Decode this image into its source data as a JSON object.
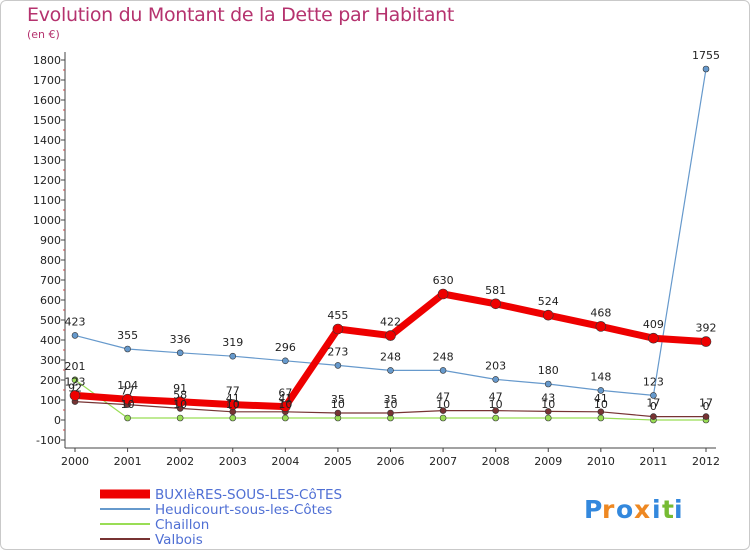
{
  "chart_data": {
    "type": "line",
    "title": "Evolution du Montant de la Dette par Habitant",
    "unit_label": "(en €)",
    "x": [
      "2000",
      "2001",
      "2002",
      "2003",
      "2004",
      "2005",
      "2006",
      "2007",
      "2008",
      "2009",
      "2010",
      "2011",
      "2012"
    ],
    "ylim": [
      -100,
      1800
    ],
    "yticks": [
      -100,
      0,
      100,
      200,
      300,
      400,
      500,
      600,
      700,
      800,
      900,
      1000,
      1100,
      1200,
      1300,
      1400,
      1500,
      1600,
      1700,
      1800
    ],
    "grid": false,
    "legend_position": "bottom-left",
    "series": [
      {
        "name": "BUXIèRES-SOUS-LES-CôTES",
        "color": "#ee0000",
        "width": 7,
        "values": [
          123,
          104,
          91,
          77,
          67,
          455,
          422,
          630,
          581,
          524,
          468,
          409,
          392
        ],
        "labels": [
          "123",
          "104",
          "91",
          "77",
          "67",
          "455",
          "422",
          "630",
          "581",
          "524",
          "468",
          "409",
          "392"
        ]
      },
      {
        "name": "Heudicourt-sous-les-Côtes",
        "color": "#6699cc",
        "width": 1.2,
        "values": [
          423,
          355,
          336,
          319,
          296,
          273,
          248,
          248,
          203,
          180,
          148,
          123,
          1755
        ],
        "labels": [
          "423",
          "355",
          "336",
          "319",
          "296",
          "273",
          "248",
          "248",
          "203",
          "180",
          "148",
          "123",
          "1755"
        ]
      },
      {
        "name": "Chaillon",
        "color": "#99dd55",
        "width": 1.2,
        "values": [
          201,
          10,
          10,
          10,
          10,
          10,
          10,
          10,
          10,
          10,
          10,
          0,
          0
        ],
        "labels": [
          "201",
          "10",
          "10",
          "10",
          "10",
          "10",
          "10",
          "10",
          "10",
          "10",
          "10",
          "0",
          "0"
        ]
      },
      {
        "name": "Valbois",
        "color": "#773333",
        "width": 1.2,
        "values": [
          92,
          77,
          58,
          41,
          41,
          35,
          35,
          47,
          47,
          43,
          41,
          17,
          17
        ],
        "labels": [
          "92",
          "77",
          "58",
          "41",
          "41",
          "35",
          "35",
          "47",
          "47",
          "43",
          "41",
          "17",
          "17"
        ]
      }
    ]
  },
  "brand": {
    "letters": [
      "P",
      "r",
      "o",
      "x",
      "i",
      "t",
      "i"
    ],
    "colors": [
      "#3388dd",
      "#ee8822",
      "#3388dd",
      "#ee8822",
      "#3388dd",
      "#77bb33",
      "#3388dd"
    ]
  }
}
